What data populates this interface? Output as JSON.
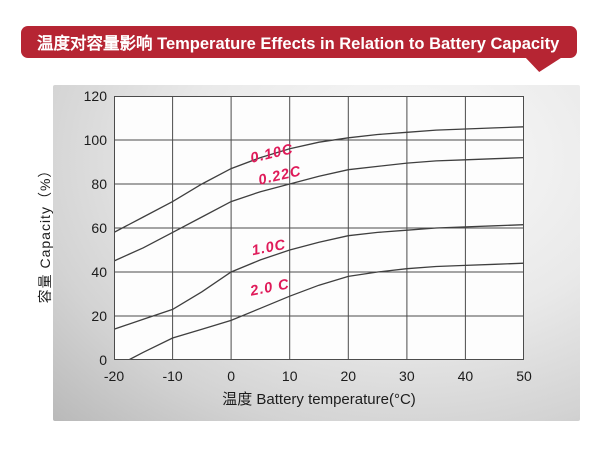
{
  "banner": {
    "title": "温度对容量影响 Temperature Effects in Relation to Battery Capacity"
  },
  "colors": {
    "banner_red": "#b62533",
    "series_label_pink": "#df1a59",
    "curve": "#3f3f3f",
    "grid": "#4c4c4c",
    "plot_background": "#fdfdfd",
    "panel_gray": "#d3d3d3"
  },
  "chart_data": {
    "type": "line",
    "title": "温度对容量影响 Temperature Effects in Relation to Battery Capacity",
    "xlabel": "温度  Battery temperature(°C)",
    "ylabel": "容量 Capacity（%）",
    "xlim": [
      -20,
      50
    ],
    "ylim": [
      0,
      120
    ],
    "x_ticks": [
      -20,
      -10,
      0,
      10,
      20,
      30,
      40,
      50
    ],
    "y_ticks": [
      0,
      20,
      40,
      60,
      80,
      100,
      120
    ],
    "grid": true,
    "legend_position": "inline-curve-labels",
    "series": [
      {
        "name": "0.10C",
        "label": "0.10C",
        "points": [
          [
            -20,
            58
          ],
          [
            -15,
            65
          ],
          [
            -10,
            72
          ],
          [
            -5,
            80
          ],
          [
            0,
            87
          ],
          [
            5,
            92
          ],
          [
            10,
            96
          ],
          [
            15,
            99
          ],
          [
            20,
            101
          ],
          [
            25,
            102.5
          ],
          [
            30,
            103.5
          ],
          [
            35,
            104.5
          ],
          [
            40,
            105
          ],
          [
            45,
            105.5
          ],
          [
            50,
            106
          ]
        ]
      },
      {
        "name": "0.22C",
        "label": "0.22C",
        "points": [
          [
            -20,
            45
          ],
          [
            -15,
            51
          ],
          [
            -10,
            58
          ],
          [
            -5,
            65
          ],
          [
            0,
            72
          ],
          [
            5,
            76.5
          ],
          [
            10,
            80
          ],
          [
            15,
            83.5
          ],
          [
            20,
            86.5
          ],
          [
            25,
            88
          ],
          [
            30,
            89.5
          ],
          [
            35,
            90.5
          ],
          [
            40,
            91
          ],
          [
            45,
            91.5
          ],
          [
            50,
            92
          ]
        ]
      },
      {
        "name": "1.0C",
        "label": "1.0C",
        "points": [
          [
            -20,
            14
          ],
          [
            -15,
            18.5
          ],
          [
            -10,
            23
          ],
          [
            -5,
            31
          ],
          [
            0,
            40
          ],
          [
            5,
            45.5
          ],
          [
            10,
            50
          ],
          [
            15,
            53.5
          ],
          [
            20,
            56.5
          ],
          [
            25,
            58
          ],
          [
            30,
            59
          ],
          [
            35,
            60
          ],
          [
            40,
            60.5
          ],
          [
            45,
            61
          ],
          [
            50,
            61.5
          ]
        ]
      },
      {
        "name": "2.0C",
        "label": "2.0 C",
        "points": [
          [
            -17.5,
            0
          ],
          [
            -15,
            3.5
          ],
          [
            -10,
            10
          ],
          [
            -5,
            14
          ],
          [
            0,
            18
          ],
          [
            5,
            23.5
          ],
          [
            10,
            29
          ],
          [
            15,
            34
          ],
          [
            20,
            38
          ],
          [
            25,
            40
          ],
          [
            30,
            41.5
          ],
          [
            35,
            42.5
          ],
          [
            40,
            43
          ],
          [
            45,
            43.5
          ],
          [
            50,
            44
          ]
        ]
      }
    ]
  }
}
